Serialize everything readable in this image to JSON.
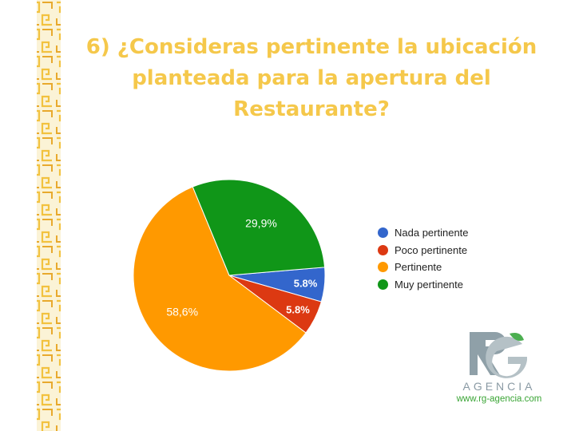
{
  "title_lines": [
    "6) ¿Consideras pertinente la ubicación",
    "planteada para la apertura del",
    "Restaurante?"
  ],
  "chart_data": {
    "type": "pie",
    "slices": [
      {
        "label": "Nada pertinente",
        "value": 5.8,
        "display": "5.8%",
        "color": "#3366cc"
      },
      {
        "label": "Poco pertinente",
        "value": 5.8,
        "display": "5.8%",
        "color": "#dc3912"
      },
      {
        "label": "Pertinente",
        "value": 58.6,
        "display": "58,6%",
        "color": "#ff9900"
      },
      {
        "label": "Muy pertinente",
        "value": 29.9,
        "display": "29,9%",
        "color": "#109618"
      }
    ],
    "legend_position": "right"
  },
  "logo": {
    "mark": "RG",
    "word": "AGENCIA",
    "url": "www.rg-agencia.com"
  }
}
